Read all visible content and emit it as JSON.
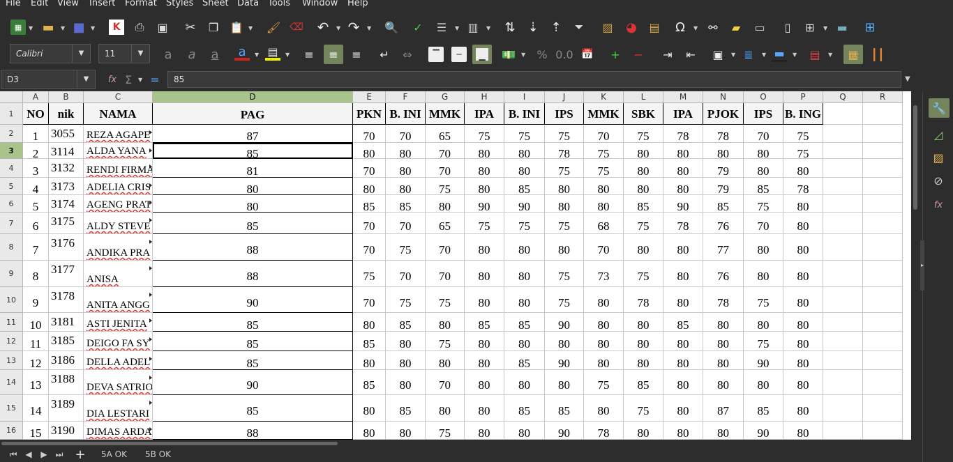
{
  "menu": [
    "File",
    "Edit",
    "View",
    "Insert",
    "Format",
    "Styles",
    "Sheet",
    "Data",
    "Tools",
    "Window",
    "Help"
  ],
  "font": {
    "name": "Calibri",
    "size": "11"
  },
  "formula": {
    "ref": "D3",
    "value": "85",
    "fx": "fx",
    "sum": "Σ",
    "eq": "="
  },
  "columns": [
    "A",
    "B",
    "C",
    "D",
    "E",
    "F",
    "G",
    "H",
    "I",
    "J",
    "K",
    "L",
    "M",
    "N",
    "O",
    "P",
    "Q",
    "R"
  ],
  "header": [
    "NO",
    "nik",
    "NAMA",
    "PAG",
    "PKN",
    "B. INI",
    "MMK",
    "IPA",
    "B. INI",
    "IPS",
    "MMK",
    "SBK",
    "IPA",
    "PJOK",
    "IPS",
    "B. ING"
  ],
  "rows": [
    {
      "n": "2",
      "no": "1",
      "nik": "3055",
      "name": "REZA AGAPE",
      "v": [
        "87",
        "70",
        "70",
        "65",
        "75",
        "75",
        "75",
        "70",
        "75",
        "78",
        "78",
        "70",
        "75"
      ]
    },
    {
      "n": "3",
      "no": "2",
      "nik": "3114",
      "name": "ALDA YANA",
      "v": [
        "85",
        "80",
        "80",
        "70",
        "80",
        "80",
        "78",
        "75",
        "80",
        "80",
        "80",
        "80",
        "75"
      ]
    },
    {
      "n": "4",
      "no": "3",
      "nik": "3132",
      "name": "RENDI FIRMA",
      "v": [
        "81",
        "70",
        "80",
        "70",
        "80",
        "80",
        "75",
        "75",
        "80",
        "80",
        "79",
        "80",
        "80"
      ]
    },
    {
      "n": "5",
      "no": "4",
      "nik": "3173",
      "name": "ADELIA CRIS",
      "v": [
        "80",
        "80",
        "80",
        "75",
        "80",
        "85",
        "80",
        "80",
        "80",
        "80",
        "79",
        "85",
        "78"
      ]
    },
    {
      "n": "6",
      "no": "5",
      "nik": "3174",
      "name": "AGENG PRAT",
      "v": [
        "80",
        "85",
        "85",
        "80",
        "90",
        "90",
        "80",
        "80",
        "85",
        "90",
        "85",
        "75",
        "80"
      ]
    },
    {
      "n": "7",
      "no": "6",
      "nik": "3175",
      "name": "ALDY STEVE",
      "v": [
        "85",
        "70",
        "70",
        "65",
        "75",
        "75",
        "75",
        "68",
        "75",
        "78",
        "76",
        "70",
        "80"
      ]
    },
    {
      "n": "8",
      "no": "7",
      "nik": "3176",
      "name": "ANDIKA PRA",
      "v": [
        "88",
        "70",
        "75",
        "70",
        "80",
        "80",
        "80",
        "70",
        "80",
        "80",
        "77",
        "80",
        "80"
      ]
    },
    {
      "n": "9",
      "no": "8",
      "nik": "3177",
      "name": "ANISA",
      "v": [
        "88",
        "75",
        "70",
        "70",
        "80",
        "80",
        "75",
        "73",
        "75",
        "80",
        "76",
        "80",
        "80"
      ]
    },
    {
      "n": "10",
      "no": "9",
      "nik": "3178",
      "name": "ANITA ANGG",
      "v": [
        "90",
        "70",
        "75",
        "75",
        "80",
        "80",
        "75",
        "80",
        "78",
        "80",
        "78",
        "75",
        "80"
      ]
    },
    {
      "n": "11",
      "no": "10",
      "nik": "3181",
      "name": "ASTI JENITA",
      "v": [
        "85",
        "80",
        "85",
        "80",
        "85",
        "85",
        "90",
        "80",
        "80",
        "85",
        "80",
        "80",
        "80"
      ]
    },
    {
      "n": "12",
      "no": "11",
      "nik": "3185",
      "name": "DEIGO FA SY",
      "v": [
        "85",
        "85",
        "80",
        "75",
        "80",
        "80",
        "80",
        "80",
        "80",
        "80",
        "80",
        "75",
        "80"
      ]
    },
    {
      "n": "13",
      "no": "12",
      "nik": "3186",
      "name": "DELLA ADEL",
      "v": [
        "85",
        "80",
        "80",
        "80",
        "80",
        "85",
        "90",
        "80",
        "80",
        "80",
        "80",
        "90",
        "80"
      ]
    },
    {
      "n": "14",
      "no": "13",
      "nik": "3188",
      "name": "DEVA SATRIO",
      "v": [
        "90",
        "85",
        "80",
        "70",
        "80",
        "80",
        "80",
        "75",
        "85",
        "80",
        "80",
        "80",
        "80"
      ]
    },
    {
      "n": "15",
      "no": "14",
      "nik": "3189",
      "name": "DIA LESTARI",
      "v": [
        "85",
        "80",
        "85",
        "80",
        "80",
        "85",
        "85",
        "80",
        "75",
        "80",
        "87",
        "85",
        "80"
      ]
    },
    {
      "n": "16",
      "no": "15",
      "nik": "3190",
      "name": "DIMAS ARDA",
      "v": [
        "88",
        "80",
        "80",
        "75",
        "80",
        "80",
        "90",
        "78",
        "80",
        "80",
        "80",
        "90",
        "80"
      ]
    }
  ],
  "tabs": [
    "5A OK",
    "5B OK"
  ],
  "colors": {
    "accent": "#a8c48a",
    "toolbar": "#2d2d2d"
  }
}
